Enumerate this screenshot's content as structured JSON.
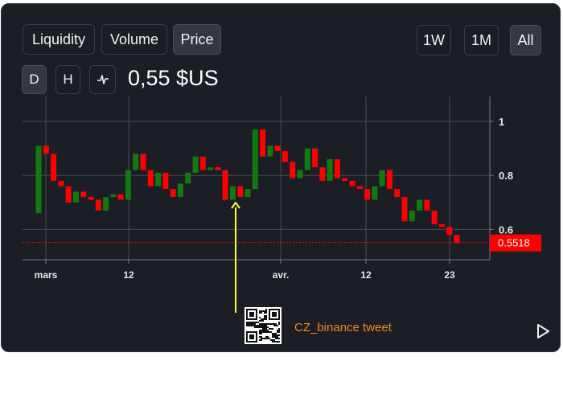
{
  "filters": {
    "liquidity_label": "Liquidity",
    "volume_label": "Volume",
    "price_label": "Price",
    "active": "Price"
  },
  "ranges": {
    "1w_label": "1W",
    "1m_label": "1M",
    "all_label": "All",
    "active": "All"
  },
  "intervals": {
    "d_label": "D",
    "h_label": "H",
    "chart_type_icon": "line-chart-icon",
    "active": "D"
  },
  "price_display": "0,55 $US",
  "annotation": {
    "text": "CZ_binance tweet",
    "qr_icon": "qr-code-icon",
    "arrow_color": "#ffff33",
    "text_color": "#f08a1c"
  },
  "play_icon": "play-icon",
  "colors": {
    "up": "#117a0e",
    "down": "#ff0000",
    "grid": "#4a4d55",
    "background": "#1c1e25",
    "last_price_bg": "#ff0000"
  },
  "chart_data": {
    "type": "candlestick",
    "y_ticks": [
      0.6,
      0.8,
      1
    ],
    "y_tick_labels": [
      "0.6",
      "0.8",
      "1"
    ],
    "x_tick_labels": [
      "mars",
      "12",
      "avr.",
      "12",
      "23"
    ],
    "ylim": [
      0.5,
      1.1
    ],
    "last_price": 0.5518,
    "last_price_label": "0.5518",
    "candles": [
      {
        "open": 0.66,
        "close": 0.91,
        "dir": "up"
      },
      {
        "open": 0.91,
        "close": 0.88,
        "dir": "down"
      },
      {
        "open": 0.88,
        "close": 0.78,
        "dir": "down"
      },
      {
        "open": 0.78,
        "close": 0.76,
        "dir": "down"
      },
      {
        "open": 0.76,
        "close": 0.7,
        "dir": "down"
      },
      {
        "open": 0.7,
        "close": 0.74,
        "dir": "up"
      },
      {
        "open": 0.74,
        "close": 0.72,
        "dir": "down"
      },
      {
        "open": 0.72,
        "close": 0.71,
        "dir": "down"
      },
      {
        "open": 0.71,
        "close": 0.67,
        "dir": "down"
      },
      {
        "open": 0.67,
        "close": 0.72,
        "dir": "up"
      },
      {
        "open": 0.72,
        "close": 0.73,
        "dir": "up"
      },
      {
        "open": 0.73,
        "close": 0.71,
        "dir": "down"
      },
      {
        "open": 0.71,
        "close": 0.82,
        "dir": "up"
      },
      {
        "open": 0.82,
        "close": 0.88,
        "dir": "up"
      },
      {
        "open": 0.88,
        "close": 0.82,
        "dir": "down"
      },
      {
        "open": 0.82,
        "close": 0.76,
        "dir": "down"
      },
      {
        "open": 0.76,
        "close": 0.81,
        "dir": "up"
      },
      {
        "open": 0.81,
        "close": 0.75,
        "dir": "down"
      },
      {
        "open": 0.75,
        "close": 0.72,
        "dir": "down"
      },
      {
        "open": 0.72,
        "close": 0.77,
        "dir": "up"
      },
      {
        "open": 0.77,
        "close": 0.81,
        "dir": "up"
      },
      {
        "open": 0.81,
        "close": 0.87,
        "dir": "up"
      },
      {
        "open": 0.87,
        "close": 0.82,
        "dir": "down"
      },
      {
        "open": 0.82,
        "close": 0.83,
        "dir": "up"
      },
      {
        "open": 0.83,
        "close": 0.82,
        "dir": "down"
      },
      {
        "open": 0.82,
        "close": 0.71,
        "dir": "down"
      },
      {
        "open": 0.71,
        "close": 0.76,
        "dir": "up"
      },
      {
        "open": 0.76,
        "close": 0.72,
        "dir": "down"
      },
      {
        "open": 0.72,
        "close": 0.75,
        "dir": "up"
      },
      {
        "open": 0.75,
        "close": 0.97,
        "dir": "up"
      },
      {
        "open": 0.97,
        "close": 0.87,
        "dir": "down"
      },
      {
        "open": 0.87,
        "close": 0.91,
        "dir": "up"
      },
      {
        "open": 0.91,
        "close": 0.89,
        "dir": "down"
      },
      {
        "open": 0.89,
        "close": 0.85,
        "dir": "down"
      },
      {
        "open": 0.85,
        "close": 0.79,
        "dir": "down"
      },
      {
        "open": 0.79,
        "close": 0.82,
        "dir": "up"
      },
      {
        "open": 0.82,
        "close": 0.9,
        "dir": "up"
      },
      {
        "open": 0.9,
        "close": 0.83,
        "dir": "down"
      },
      {
        "open": 0.83,
        "close": 0.78,
        "dir": "down"
      },
      {
        "open": 0.78,
        "close": 0.86,
        "dir": "up"
      },
      {
        "open": 0.86,
        "close": 0.79,
        "dir": "down"
      },
      {
        "open": 0.79,
        "close": 0.78,
        "dir": "down"
      },
      {
        "open": 0.78,
        "close": 0.76,
        "dir": "down"
      },
      {
        "open": 0.76,
        "close": 0.75,
        "dir": "down"
      },
      {
        "open": 0.75,
        "close": 0.71,
        "dir": "down"
      },
      {
        "open": 0.71,
        "close": 0.76,
        "dir": "up"
      },
      {
        "open": 0.76,
        "close": 0.82,
        "dir": "up"
      },
      {
        "open": 0.82,
        "close": 0.75,
        "dir": "down"
      },
      {
        "open": 0.75,
        "close": 0.72,
        "dir": "down"
      },
      {
        "open": 0.72,
        "close": 0.63,
        "dir": "down"
      },
      {
        "open": 0.63,
        "close": 0.67,
        "dir": "up"
      },
      {
        "open": 0.67,
        "close": 0.71,
        "dir": "up"
      },
      {
        "open": 0.71,
        "close": 0.67,
        "dir": "down"
      },
      {
        "open": 0.67,
        "close": 0.62,
        "dir": "down"
      },
      {
        "open": 0.62,
        "close": 0.61,
        "dir": "down"
      },
      {
        "open": 0.61,
        "close": 0.58,
        "dir": "down"
      },
      {
        "open": 0.58,
        "close": 0.55,
        "dir": "down"
      }
    ]
  }
}
